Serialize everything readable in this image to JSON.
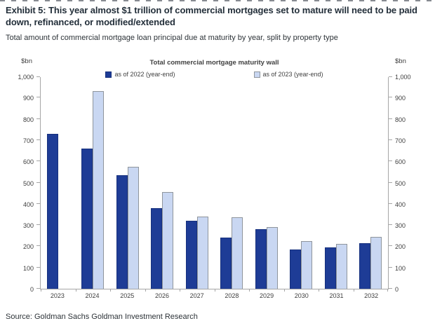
{
  "header": {
    "title": "Exhibit 5: This year almost $1 trillion of commercial mortgages set to mature will need to be paid down, refinanced, or modified/extended",
    "subtitle": "Total amount of commercial mortgage loan principal due at maturity by year, split by property type"
  },
  "source": "Source: Goldman Sachs Goldman Investment Research",
  "chart_data": {
    "type": "bar",
    "title": "Total commercial mortgage maturity wall",
    "ylabel": "$bn",
    "ylabel_right": "$bn",
    "categories": [
      "2023",
      "2024",
      "2025",
      "2026",
      "2027",
      "2028",
      "2029",
      "2030",
      "2031",
      "2032"
    ],
    "series": [
      {
        "name": "as of 2022 (year-end)",
        "color": "#1E3C96",
        "border_color": "#16307D",
        "values": [
          730,
          660,
          535,
          380,
          320,
          240,
          280,
          185,
          195,
          215
        ]
      },
      {
        "name": "as of 2023 (year-end)",
        "color": "#C9D7F2",
        "border_color": "#8F959C",
        "values": [
          null,
          930,
          575,
          455,
          340,
          335,
          290,
          225,
          210,
          245
        ]
      }
    ],
    "ylim": [
      0,
      1000
    ],
    "ytick_step": 100,
    "ytick_labels": [
      "0",
      "100",
      "200",
      "300",
      "400",
      "500",
      "600",
      "700",
      "800",
      "900",
      "1,000"
    ],
    "grid": false,
    "legend_position": "top-center",
    "axis_color": "#A6A6A6"
  }
}
